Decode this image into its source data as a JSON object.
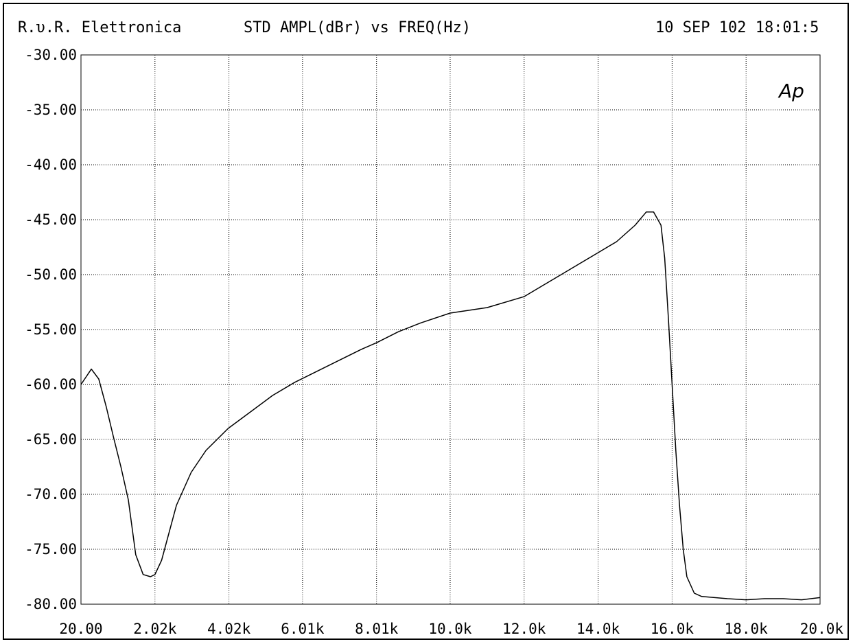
{
  "header": {
    "vendor": "R.υ.R. Elettronica",
    "plot_title": "STD AMPL(dBr) vs FREQ(Hz)",
    "datetime": "10 SEP 102 18:01:5"
  },
  "logo_text": "Ap",
  "chart_data": {
    "type": "line",
    "title": "STD AMPL(dBr) vs FREQ(Hz)",
    "xlabel": "",
    "ylabel": "",
    "xlim": [
      20,
      20000
    ],
    "ylim": [
      -80,
      -30
    ],
    "grid": true,
    "x_tick_labels": [
      "20.00",
      "2.02k",
      "4.02k",
      "6.01k",
      "8.01k",
      "10.0k",
      "12.0k",
      "14.0k",
      "16.0k",
      "18.0k",
      "20.0k"
    ],
    "y_tick_labels": [
      "-30.00",
      "-35.00",
      "-40.00",
      "-45.00",
      "-50.00",
      "-55.00",
      "-60.00",
      "-65.00",
      "-70.00",
      "-75.00",
      "-80.00"
    ],
    "x_ticks": [
      20,
      2020,
      4020,
      6010,
      8010,
      10000,
      12000,
      14000,
      16000,
      18000,
      20000
    ],
    "y_ticks": [
      -30,
      -35,
      -40,
      -45,
      -50,
      -55,
      -60,
      -65,
      -70,
      -75,
      -80
    ],
    "series": [
      {
        "color": "#000000",
        "x": [
          20,
          300,
          500,
          700,
          900,
          1100,
          1300,
          1500,
          1700,
          1900,
          2020,
          2200,
          2400,
          2600,
          3000,
          3400,
          4000,
          4600,
          5200,
          5800,
          6400,
          7000,
          7600,
          8010,
          8600,
          9200,
          10000,
          11000,
          12000,
          12500,
          13000,
          13500,
          14000,
          14500,
          15000,
          15300,
          15500,
          15700,
          15800,
          15900,
          16000,
          16100,
          16200,
          16300,
          16400,
          16600,
          16800,
          17500,
          18000,
          18500,
          19000,
          19500,
          20000
        ],
        "y": [
          -60.0,
          -58.6,
          -59.5,
          -62.0,
          -64.8,
          -67.5,
          -70.5,
          -75.5,
          -77.3,
          -77.5,
          -77.3,
          -76.0,
          -73.5,
          -71.0,
          -68.0,
          -66.0,
          -64.0,
          -62.5,
          -61.0,
          -59.8,
          -58.8,
          -57.8,
          -56.8,
          -56.2,
          -55.2,
          -54.4,
          -53.5,
          -53.0,
          -52.0,
          -51.0,
          -50.0,
          -49.0,
          -48.0,
          -47.0,
          -45.5,
          -44.3,
          -44.3,
          -45.5,
          -48.5,
          -54.0,
          -60.0,
          -66.0,
          -71.0,
          -75.0,
          -77.5,
          -79.0,
          -79.3,
          -79.5,
          -79.6,
          -79.5,
          -79.5,
          -79.6,
          -79.4
        ]
      }
    ]
  }
}
